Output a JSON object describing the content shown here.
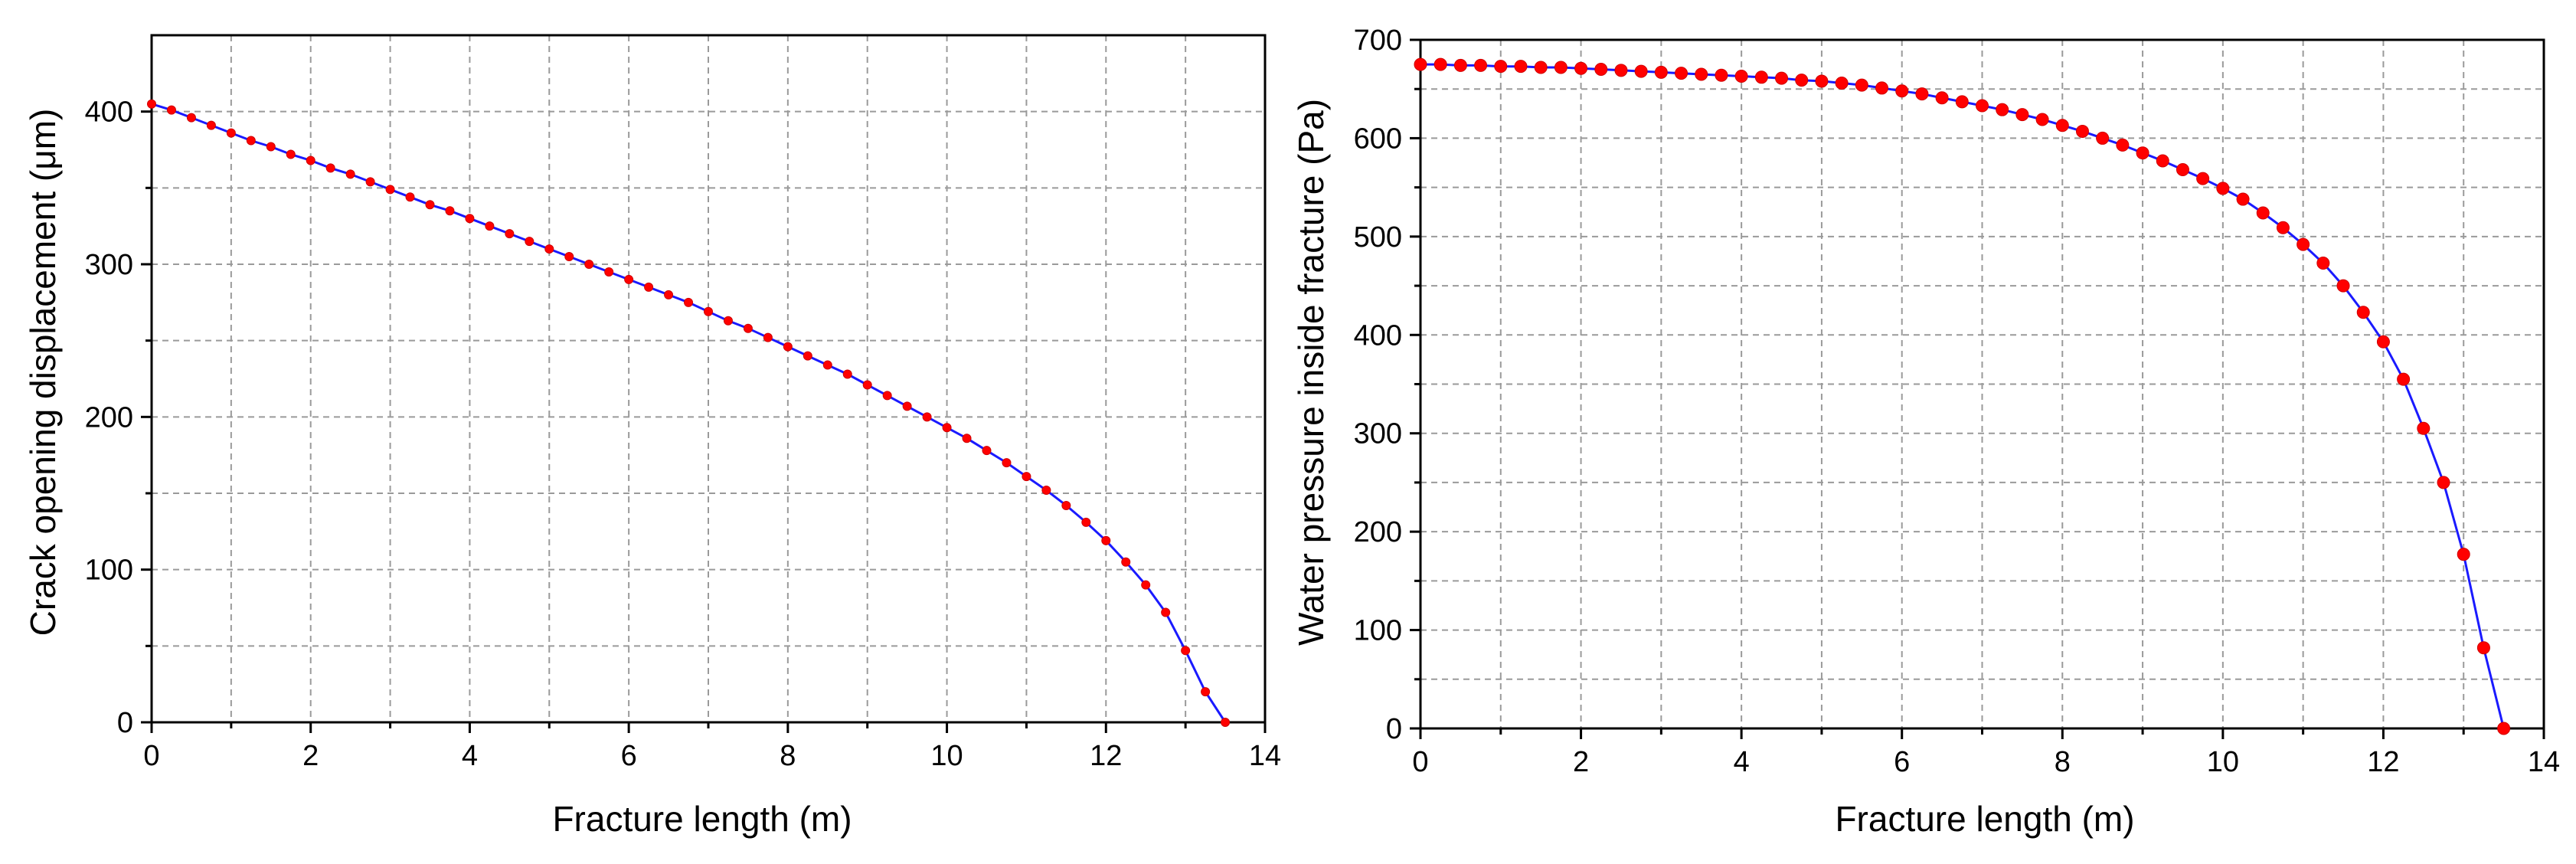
{
  "chart_data": [
    {
      "type": "line",
      "title": "",
      "xlabel": "Fracture length (m)",
      "ylabel": "Crack opening displacement (μm)",
      "xlim": [
        0,
        14
      ],
      "ylim": [
        0,
        450
      ],
      "xticks": [
        "0",
        "2",
        "4",
        "6",
        "8",
        "10",
        "12",
        "14"
      ],
      "yticks": [
        "0",
        "100",
        "200",
        "300",
        "400"
      ],
      "xtick_values": [
        0,
        2,
        4,
        6,
        8,
        10,
        12,
        14
      ],
      "ytick_values": [
        0,
        100,
        200,
        300,
        400
      ],
      "grid": true,
      "colors": {
        "line": "#1a1aff",
        "marker": "#ff0000"
      },
      "series": [
        {
          "name": "Crack opening displacement",
          "x": [
            0,
            0.25,
            0.5,
            0.75,
            1.0,
            1.25,
            1.5,
            1.75,
            2.0,
            2.25,
            2.5,
            2.75,
            3.0,
            3.25,
            3.5,
            3.75,
            4.0,
            4.25,
            4.5,
            4.75,
            5.0,
            5.25,
            5.5,
            5.75,
            6.0,
            6.25,
            6.5,
            6.75,
            7.0,
            7.25,
            7.5,
            7.75,
            8.0,
            8.25,
            8.5,
            8.75,
            9.0,
            9.25,
            9.5,
            9.75,
            10.0,
            10.25,
            10.5,
            10.75,
            11.0,
            11.25,
            11.5,
            11.75,
            12.0,
            12.25,
            12.5,
            12.75,
            13.0,
            13.25,
            13.5
          ],
          "y": [
            405,
            401,
            396,
            391,
            386,
            381,
            377,
            372,
            368,
            363,
            359,
            354,
            349,
            344,
            339,
            335,
            330,
            325,
            320,
            315,
            310,
            305,
            300,
            295,
            290,
            285,
            280,
            275,
            269,
            263,
            258,
            252,
            246,
            240,
            234,
            228,
            221,
            214,
            207,
            200,
            193,
            186,
            178,
            170,
            161,
            152,
            142,
            131,
            119,
            105,
            90,
            72,
            47,
            20,
            0
          ]
        }
      ]
    },
    {
      "type": "line",
      "title": "",
      "xlabel": "Fracture length (m)",
      "ylabel": "Water pressure inside fracture (Pa)",
      "xlim": [
        0,
        14
      ],
      "ylim": [
        0,
        700
      ],
      "xticks": [
        "0",
        "2",
        "4",
        "6",
        "8",
        "10",
        "12",
        "14"
      ],
      "yticks": [
        "0",
        "100",
        "200",
        "300",
        "400",
        "500",
        "600",
        "700"
      ],
      "xtick_values": [
        0,
        2,
        4,
        6,
        8,
        10,
        12,
        14
      ],
      "ytick_values": [
        0,
        100,
        200,
        300,
        400,
        500,
        600,
        700
      ],
      "grid": true,
      "colors": {
        "line": "#1a1aff",
        "marker": "#ff0000"
      },
      "series": [
        {
          "name": "Water pressure inside fracture",
          "x": [
            0,
            0.25,
            0.5,
            0.75,
            1.0,
            1.25,
            1.5,
            1.75,
            2.0,
            2.25,
            2.5,
            2.75,
            3.0,
            3.25,
            3.5,
            3.75,
            4.0,
            4.25,
            4.5,
            4.75,
            5.0,
            5.25,
            5.5,
            5.75,
            6.0,
            6.25,
            6.5,
            6.75,
            7.0,
            7.25,
            7.5,
            7.75,
            8.0,
            8.25,
            8.5,
            8.75,
            9.0,
            9.25,
            9.5,
            9.75,
            10.0,
            10.25,
            10.5,
            10.75,
            11.0,
            11.25,
            11.5,
            11.75,
            12.0,
            12.25,
            12.5,
            12.75,
            13.0,
            13.25,
            13.5
          ],
          "y": [
            675,
            675,
            674,
            674,
            673,
            673,
            672,
            672,
            671,
            670,
            669,
            668,
            667,
            666,
            665,
            664,
            663,
            662,
            661,
            659,
            658,
            656,
            654,
            651,
            648,
            645,
            641,
            637,
            633,
            629,
            624,
            619,
            613,
            607,
            600,
            593,
            585,
            577,
            568,
            559,
            549,
            538,
            524,
            509,
            492,
            473,
            450,
            423,
            393,
            355,
            305,
            250,
            177,
            82,
            0
          ]
        }
      ]
    }
  ]
}
